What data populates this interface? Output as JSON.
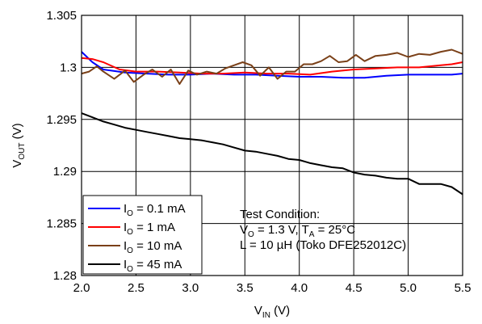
{
  "chart_data": {
    "type": "line",
    "title": "",
    "xlabel": {
      "main": "V",
      "sub": "IN",
      "unit": " (V)"
    },
    "ylabel": {
      "main": "V",
      "sub": "OUT",
      "unit": " (V)"
    },
    "xlim": [
      2.0,
      5.5
    ],
    "ylim": [
      1.28,
      1.305
    ],
    "xticks": [
      "2.0",
      "2.5",
      "3.0",
      "3.5",
      "4.0",
      "4.5",
      "5.0",
      "5.5"
    ],
    "yticks": [
      "1.305",
      "1.3",
      "1.295",
      "1.29",
      "1.285",
      "1.28"
    ],
    "grid": true,
    "legend_placement": "bottom-left",
    "series": [
      {
        "name": {
          "main": "I",
          "sub": "O",
          "rest": " = 0.1 mA"
        },
        "color": "#0000ff",
        "x": [
          2.0,
          2.1,
          2.2,
          2.4,
          2.6,
          2.8,
          3.0,
          3.2,
          3.4,
          3.6,
          3.8,
          4.0,
          4.2,
          4.4,
          4.6,
          4.8,
          5.0,
          5.2,
          5.4,
          5.5
        ],
        "y": [
          1.3015,
          1.3005,
          1.2998,
          1.2995,
          1.2994,
          1.2993,
          1.2993,
          1.2994,
          1.2993,
          1.2993,
          1.2992,
          1.2991,
          1.2991,
          1.299,
          1.299,
          1.2992,
          1.2993,
          1.2993,
          1.2993,
          1.2994
        ]
      },
      {
        "name": {
          "main": "I",
          "sub": "O",
          "rest": " = 1 mA"
        },
        "color": "#ff0000",
        "x": [
          2.0,
          2.1,
          2.2,
          2.35,
          2.5,
          2.7,
          2.9,
          3.1,
          3.3,
          3.5,
          3.7,
          3.9,
          4.1,
          4.3,
          4.5,
          4.7,
          4.9,
          5.1,
          5.3,
          5.4,
          5.5
        ],
        "y": [
          1.3009,
          1.3008,
          1.3005,
          1.2998,
          1.2996,
          1.2996,
          1.2995,
          1.2994,
          1.2994,
          1.2995,
          1.2994,
          1.2994,
          1.2993,
          1.2996,
          1.2998,
          1.2999,
          1.3,
          1.3,
          1.3002,
          1.3003,
          1.3005
        ]
      },
      {
        "name": {
          "main": "I",
          "sub": "O",
          "rest": " = 10 mA"
        },
        "color": "#7a4018",
        "x": [
          2.0,
          2.07,
          2.14,
          2.2,
          2.3,
          2.4,
          2.48,
          2.57,
          2.65,
          2.74,
          2.82,
          2.9,
          2.98,
          3.06,
          3.15,
          3.24,
          3.32,
          3.4,
          3.48,
          3.56,
          3.64,
          3.72,
          3.8,
          3.88,
          3.96,
          4.04,
          4.12,
          4.2,
          4.28,
          4.36,
          4.44,
          4.52,
          4.6,
          4.7,
          4.8,
          4.9,
          5.0,
          5.1,
          5.2,
          5.3,
          5.4,
          5.5
        ],
        "y": [
          1.2994,
          1.2996,
          1.3001,
          1.2996,
          1.2989,
          1.2997,
          1.2986,
          1.2993,
          1.2998,
          1.2991,
          1.2998,
          1.2984,
          1.2997,
          1.2993,
          1.2996,
          1.2994,
          1.2999,
          1.3002,
          1.3005,
          1.3002,
          1.2992,
          1.3,
          1.2989,
          1.2996,
          1.2996,
          1.3003,
          1.3003,
          1.3006,
          1.3011,
          1.3005,
          1.3006,
          1.3012,
          1.3006,
          1.3011,
          1.3012,
          1.3014,
          1.301,
          1.3013,
          1.3012,
          1.3015,
          1.3017,
          1.3013
        ]
      },
      {
        "name": {
          "main": "I",
          "sub": "O",
          "rest": " = 45 mA"
        },
        "color": "#000000",
        "x": [
          2.0,
          2.1,
          2.2,
          2.3,
          2.4,
          2.5,
          2.6,
          2.7,
          2.8,
          2.9,
          3.0,
          3.1,
          3.2,
          3.3,
          3.4,
          3.5,
          3.6,
          3.7,
          3.8,
          3.9,
          4.0,
          4.1,
          4.2,
          4.3,
          4.4,
          4.5,
          4.6,
          4.7,
          4.8,
          4.9,
          5.0,
          5.1,
          5.2,
          5.3,
          5.4,
          5.5
        ],
        "y": [
          1.2956,
          1.2952,
          1.2948,
          1.2945,
          1.2942,
          1.294,
          1.2938,
          1.2936,
          1.2934,
          1.2932,
          1.2931,
          1.293,
          1.2928,
          1.2926,
          1.2923,
          1.292,
          1.2919,
          1.2917,
          1.2915,
          1.2912,
          1.2911,
          1.2908,
          1.2906,
          1.2904,
          1.2903,
          1.2899,
          1.2897,
          1.2896,
          1.2894,
          1.2893,
          1.2893,
          1.2888,
          1.2888,
          1.2888,
          1.2885,
          1.2878
        ]
      }
    ],
    "annotation": {
      "line1": "Test Condition:",
      "line2": {
        "a": "V",
        "a_sub": "O",
        "b": " = 1.3 V, T",
        "b_sub": "A",
        "c": " = 25°C"
      },
      "line3": "L = 10 µH (Toko DFE252012C)"
    }
  }
}
